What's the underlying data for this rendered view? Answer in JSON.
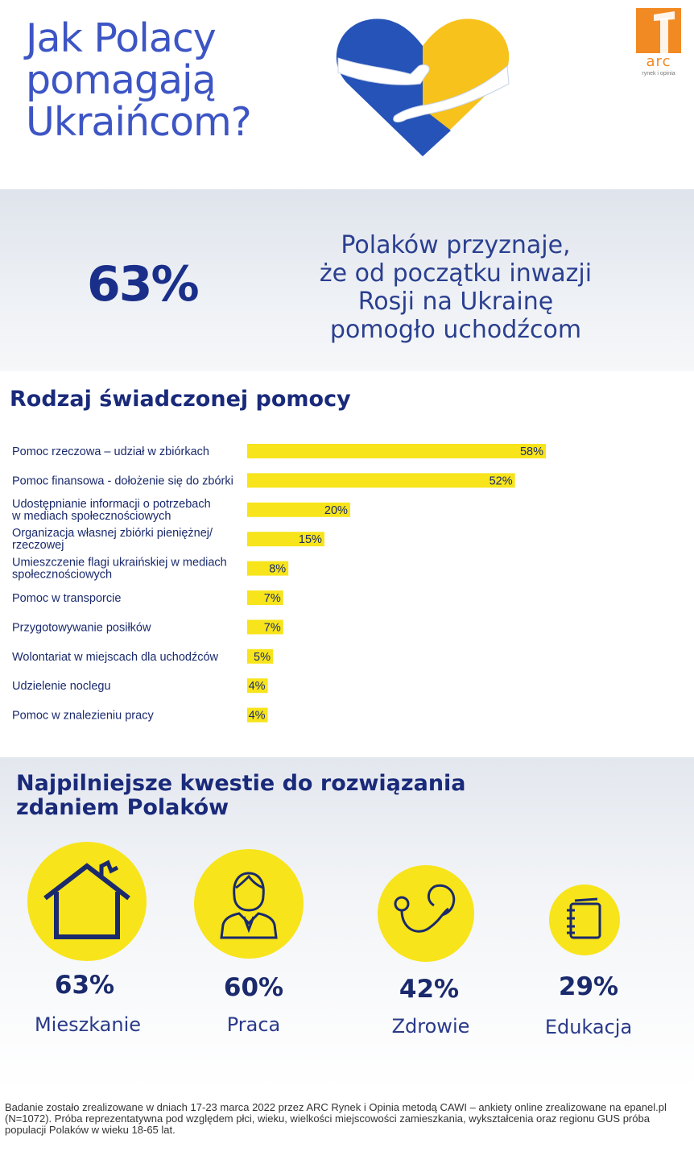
{
  "header": {
    "title_lines": [
      "Jak Polacy",
      "pomagają",
      "Ukraińcom?"
    ],
    "logo": {
      "text": "arc",
      "subtext": "rynek i opinia",
      "color": "#f28a23"
    },
    "heart_colors": {
      "blue": "#2653b8",
      "yellow": "#f7c21b"
    }
  },
  "headline": {
    "value": "63%",
    "text_lines": [
      "Polaków przyznaje,",
      "że od początku inwazji",
      "Rosji na Ukrainę",
      "pomogło uchodźcom"
    ]
  },
  "help_section": {
    "title": "Rodzaj świadczonej pomocy"
  },
  "chart_data": {
    "type": "bar",
    "orientation": "horizontal",
    "title": "Rodzaj świadczonej pomocy",
    "bar_color": "#f7e41b",
    "categories": [
      [
        "Pomoc rzeczowa – udział w zbiórkach"
      ],
      [
        "Pomoc finansowa - dołożenie się do zbórki"
      ],
      [
        "Udostępnianie informacji o potrzebach",
        "w mediach społecznościowych"
      ],
      [
        "Organizacja własnej zbiórki pieniężnej/",
        "rzeczowej"
      ],
      [
        "Umieszczenie flagi ukraińskiej w mediach",
        "społecznościowych"
      ],
      [
        "Pomoc w transporcie"
      ],
      [
        "Przygotowywanie posiłków"
      ],
      [
        "Wolontariat w miejscach dla uchodźców"
      ],
      [
        "Udzielenie noclegu"
      ],
      [
        "Pomoc w znalezieniu pracy"
      ]
    ],
    "values": [
      58,
      52,
      20,
      15,
      8,
      7,
      7,
      5,
      4,
      4
    ],
    "value_labels": [
      "58%",
      "52%",
      "20%",
      "15%",
      "8%",
      "7%",
      "7%",
      "5%",
      "4%",
      "4%"
    ]
  },
  "issues_section": {
    "title_lines": [
      "Najpilniejsze kwestie do rozwiązania",
      "zdaniem Polaków"
    ],
    "items": [
      {
        "icon": "house-icon",
        "value": "63%",
        "label": "Mieszkanie"
      },
      {
        "icon": "worker-icon",
        "value": "60%",
        "label": "Praca"
      },
      {
        "icon": "stethoscope-icon",
        "value": "42%",
        "label": "Zdrowie"
      },
      {
        "icon": "notebook-icon",
        "value": "29%",
        "label": "Edukacja"
      }
    ]
  },
  "footer": {
    "text": "Badanie zostało zrealizowane w dniach 17-23 marca 2022 przez ARC Rynek i Opinia metodą CAWI – ankiety online zrealizowane na epanel.pl (N=1072). Próba reprezentatywna pod względem płci, wieku, wielkości miejscowości zamieszkania, wykształcenia oraz regionu GUS próba populacji Polaków w wieku 18-65 lat."
  }
}
